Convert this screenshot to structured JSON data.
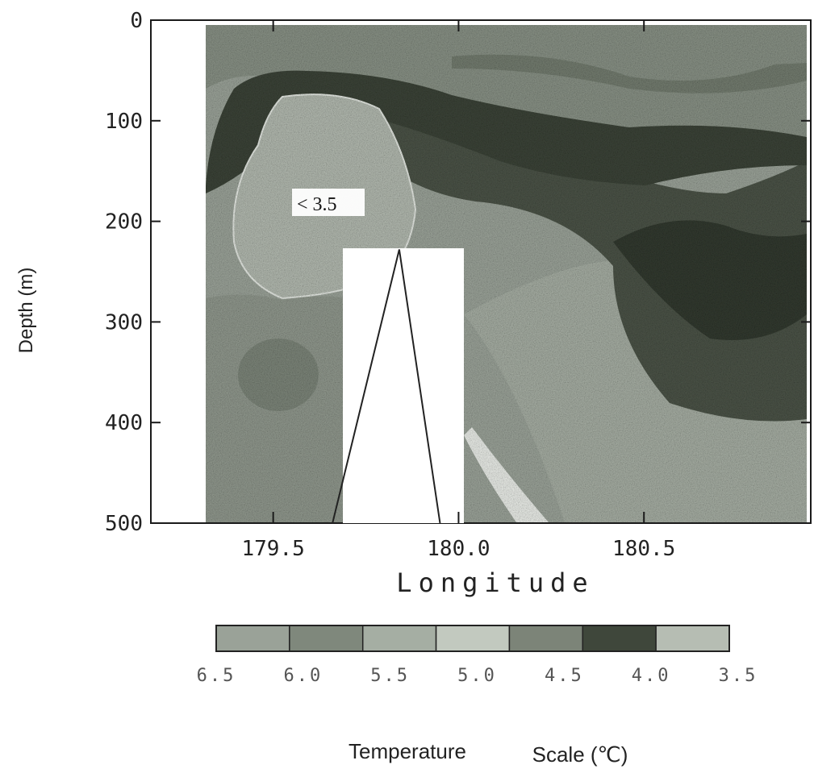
{
  "chart_data": {
    "type": "heatmap",
    "title": "",
    "xlabel": "Longitude",
    "ylabel": "Depth (m)",
    "x_ticks": [
      "179.5",
      "180.0",
      "180.5"
    ],
    "x_tick_values": [
      179.5,
      180.0,
      180.5
    ],
    "y_ticks": [
      "0",
      "100",
      "200",
      "300",
      "400",
      "500"
    ],
    "y_tick_values": [
      0,
      100,
      200,
      300,
      400,
      500
    ],
    "xlim": [
      179.17,
      180.95
    ],
    "ylim": [
      500,
      0
    ],
    "data_x_extent": [
      179.31,
      180.82
    ],
    "annotation": "< 3.5",
    "seamount": {
      "base_left": 179.66,
      "peak": 179.84,
      "base_right": 179.95,
      "peak_depth": 228
    },
    "masked_region": {
      "x_range": [
        179.66,
        179.97
      ],
      "depth_range": [
        228,
        500
      ]
    },
    "colorbar": {
      "labels": [
        "6.5",
        "6.0",
        "5.5",
        "5.0",
        "4.5",
        "4.0",
        "3.5"
      ],
      "values": [
        6.5,
        6.0,
        5.5,
        5.0,
        4.5,
        4.0,
        3.5
      ],
      "colors": [
        "#9aa298",
        "#7f887c",
        "#a5aea3",
        "#c2c9bf",
        "#7c8478",
        "#3f473b",
        "#b6bdb3"
      ]
    },
    "footer": {
      "label": "Temperature",
      "scale": "Scale (℃)"
    },
    "grid": false,
    "legend": "bottom"
  }
}
